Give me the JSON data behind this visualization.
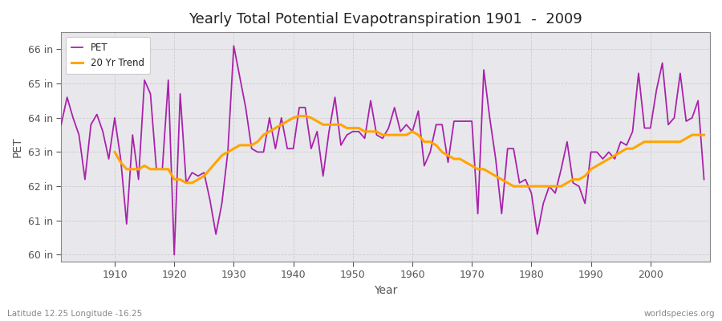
{
  "title": "Yearly Total Potential Evapotranspiration 1901  -  2009",
  "xlabel": "Year",
  "ylabel": "PET",
  "subtitle_left": "Latitude 12.25 Longitude -16.25",
  "subtitle_right": "worldspecies.org",
  "pet_color": "#AA22AA",
  "trend_color": "#FFA500",
  "fig_bg_color": "#FFFFFF",
  "plot_bg_color": "#E8E8EC",
  "ylim": [
    59.8,
    66.5
  ],
  "yticks": [
    60,
    61,
    62,
    63,
    64,
    65,
    66
  ],
  "ytick_labels": [
    "60 in",
    "61 in",
    "62 in",
    "63 in",
    "64 in",
    "65 in",
    "66 in"
  ],
  "years": [
    1901,
    1902,
    1903,
    1904,
    1905,
    1906,
    1907,
    1908,
    1909,
    1910,
    1911,
    1912,
    1913,
    1914,
    1915,
    1916,
    1917,
    1918,
    1919,
    1920,
    1921,
    1922,
    1923,
    1924,
    1925,
    1926,
    1927,
    1928,
    1929,
    1930,
    1931,
    1932,
    1933,
    1934,
    1935,
    1936,
    1937,
    1938,
    1939,
    1940,
    1941,
    1942,
    1943,
    1944,
    1945,
    1946,
    1947,
    1948,
    1949,
    1950,
    1951,
    1952,
    1953,
    1954,
    1955,
    1956,
    1957,
    1958,
    1959,
    1960,
    1961,
    1962,
    1963,
    1964,
    1965,
    1966,
    1967,
    1968,
    1969,
    1970,
    1971,
    1972,
    1973,
    1974,
    1975,
    1976,
    1977,
    1978,
    1979,
    1980,
    1981,
    1982,
    1983,
    1984,
    1985,
    1986,
    1987,
    1988,
    1989,
    1990,
    1991,
    1992,
    1993,
    1994,
    1995,
    1996,
    1997,
    1998,
    1999,
    2000,
    2001,
    2002,
    2003,
    2004,
    2005,
    2006,
    2007,
    2008,
    2009
  ],
  "pet_values": [
    63.8,
    64.6,
    64.0,
    63.5,
    62.2,
    63.8,
    64.1,
    63.6,
    62.8,
    64.0,
    62.8,
    60.9,
    63.5,
    62.2,
    65.1,
    64.7,
    62.5,
    62.5,
    65.1,
    60.0,
    64.7,
    62.1,
    62.4,
    62.3,
    62.4,
    61.6,
    60.6,
    61.5,
    63.0,
    66.1,
    65.2,
    64.3,
    63.1,
    63.0,
    63.0,
    64.0,
    63.1,
    64.0,
    63.1,
    63.1,
    64.3,
    64.3,
    63.1,
    63.6,
    62.3,
    63.6,
    64.6,
    63.2,
    63.5,
    63.6,
    63.6,
    63.4,
    64.5,
    63.5,
    63.4,
    63.7,
    64.3,
    63.6,
    63.8,
    63.6,
    64.2,
    62.6,
    63.0,
    63.8,
    63.8,
    62.7,
    63.9,
    63.9,
    63.9,
    63.9,
    61.2,
    65.4,
    64.0,
    62.8,
    61.2,
    63.1,
    63.1,
    62.1,
    62.2,
    61.8,
    60.6,
    61.5,
    62.0,
    61.8,
    62.5,
    63.3,
    62.1,
    62.0,
    61.5,
    63.0,
    63.0,
    62.8,
    63.0,
    62.8,
    63.3,
    63.2,
    63.6,
    65.3,
    63.7,
    63.7,
    64.8,
    65.6,
    63.8,
    64.0,
    65.3,
    63.9,
    64.0,
    64.5,
    62.2
  ],
  "trend_values_years": [
    1910,
    1911,
    1912,
    1913,
    1914,
    1915,
    1916,
    1917,
    1918,
    1919,
    1920,
    1921,
    1922,
    1923,
    1924,
    1925,
    1926,
    1927,
    1928,
    1929,
    1930,
    1931,
    1932,
    1933,
    1934,
    1935,
    1936,
    1937,
    1938,
    1939,
    1940,
    1941,
    1942,
    1943,
    1944,
    1945,
    1946,
    1947,
    1948,
    1949,
    1950,
    1951,
    1952,
    1953,
    1954,
    1955,
    1956,
    1957,
    1958,
    1959,
    1960,
    1961,
    1962,
    1963,
    1964,
    1965,
    1966,
    1967,
    1968,
    1969,
    1970,
    1971,
    1972,
    1973,
    1974,
    1975,
    1976,
    1977,
    1978,
    1979,
    1980,
    1981,
    1982,
    1983,
    1984,
    1985,
    1986,
    1987,
    1988,
    1989,
    1990,
    1991,
    1992,
    1993,
    1994,
    1995,
    1996,
    1997,
    1998,
    1999,
    2000,
    2001,
    2002,
    2003,
    2004,
    2005,
    2006,
    2007,
    2008,
    2009
  ],
  "trend_values": [
    63.0,
    62.7,
    62.5,
    62.5,
    62.5,
    62.6,
    62.5,
    62.5,
    62.5,
    62.5,
    62.2,
    62.2,
    62.1,
    62.1,
    62.2,
    62.3,
    62.5,
    62.7,
    62.9,
    63.0,
    63.1,
    63.2,
    63.2,
    63.2,
    63.3,
    63.5,
    63.6,
    63.7,
    63.8,
    63.9,
    64.0,
    64.05,
    64.05,
    64.0,
    63.9,
    63.8,
    63.8,
    63.8,
    63.8,
    63.7,
    63.7,
    63.7,
    63.6,
    63.6,
    63.6,
    63.5,
    63.5,
    63.5,
    63.5,
    63.5,
    63.6,
    63.5,
    63.3,
    63.3,
    63.2,
    63.0,
    62.9,
    62.8,
    62.8,
    62.7,
    62.6,
    62.5,
    62.5,
    62.4,
    62.3,
    62.2,
    62.1,
    62.0,
    62.0,
    62.0,
    62.0,
    62.0,
    62.0,
    62.0,
    62.0,
    62.0,
    62.1,
    62.2,
    62.2,
    62.3,
    62.5,
    62.6,
    62.7,
    62.8,
    62.9,
    63.0,
    63.1,
    63.1,
    63.2,
    63.3,
    63.3,
    63.3,
    63.3,
    63.3,
    63.3,
    63.3,
    63.4,
    63.5,
    63.5,
    63.5
  ]
}
